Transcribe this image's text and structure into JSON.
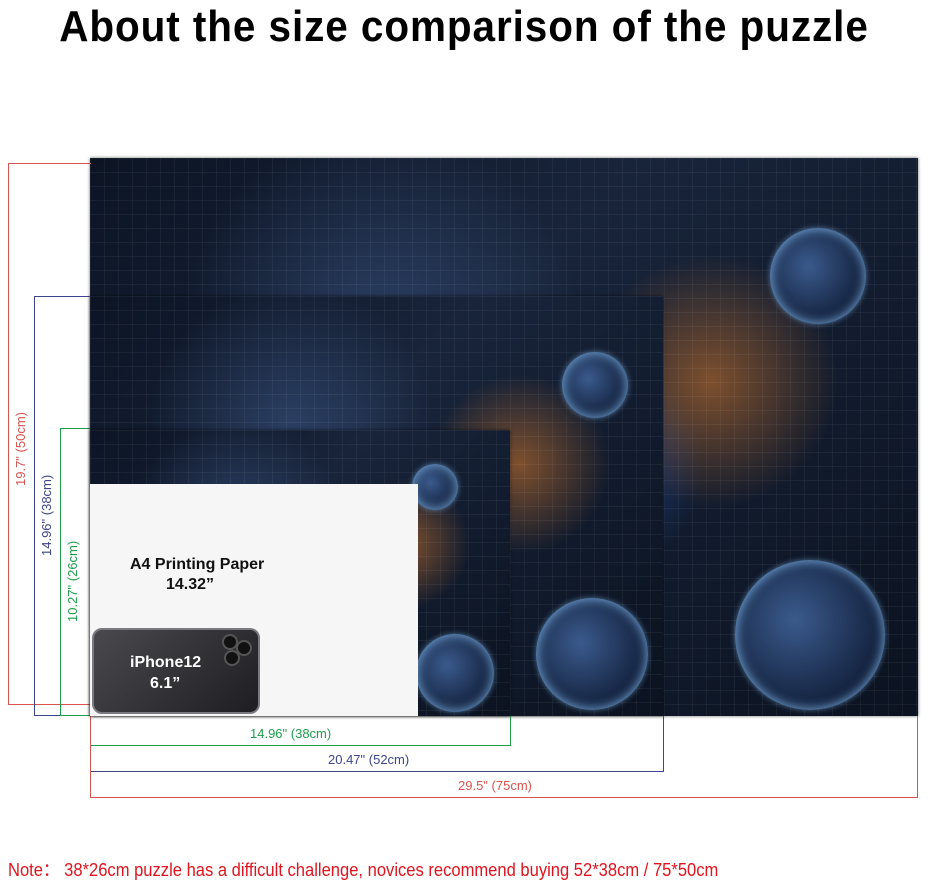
{
  "title": "About the size comparison of the puzzle",
  "paper": {
    "label": "A4 Printing Paper",
    "size": "14.32”"
  },
  "phone": {
    "label": "iPhone12",
    "size": "6.1”"
  },
  "dimensions": {
    "large_height": "19.7\" (50cm)",
    "medium_height": "14.96\" (38cm)",
    "small_height": "10.27\" (26cm)",
    "small_width": "14.96\" (38cm)",
    "medium_width": "20.47\" (52cm)",
    "large_width": "29.5\" (75cm)"
  },
  "colors": {
    "large": "#d9534f",
    "medium": "#3d4590",
    "small": "#1f9e4a",
    "note": "#e0141e"
  },
  "note": "Note： 38*26cm puzzle has a difficult challenge, novices recommend buying 52*38cm / 75*50cm"
}
